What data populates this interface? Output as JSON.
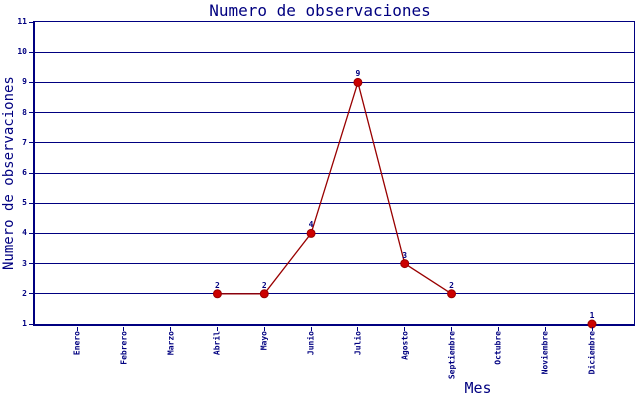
{
  "chart_data": {
    "type": "line",
    "title": "Numero de observaciones",
    "xlabel": "Mes",
    "ylabel": "Numero de observaciones",
    "categories": [
      "Enero",
      "Febrero",
      "Marzo",
      "Abril",
      "Mayo",
      "Junio",
      "Julio",
      "Agosto",
      "Septiembre",
      "Octubre",
      "Noviembre",
      "Diciembre"
    ],
    "series": [
      {
        "name": "observaciones",
        "values": [
          null,
          null,
          null,
          2,
          2,
          4,
          9,
          3,
          2,
          null,
          null,
          1
        ]
      }
    ],
    "ylim": [
      1,
      11
    ],
    "yticks": [
      1,
      2,
      3,
      4,
      5,
      6,
      7,
      8,
      9,
      10,
      11
    ],
    "grid": true,
    "legend_position": "none",
    "point_labels_visible": true,
    "colors": {
      "axis": "#000080",
      "grid": "#000080",
      "text": "#000080",
      "line": "#990000",
      "point_fill": "#cc0000",
      "background": "#ffffff"
    }
  }
}
